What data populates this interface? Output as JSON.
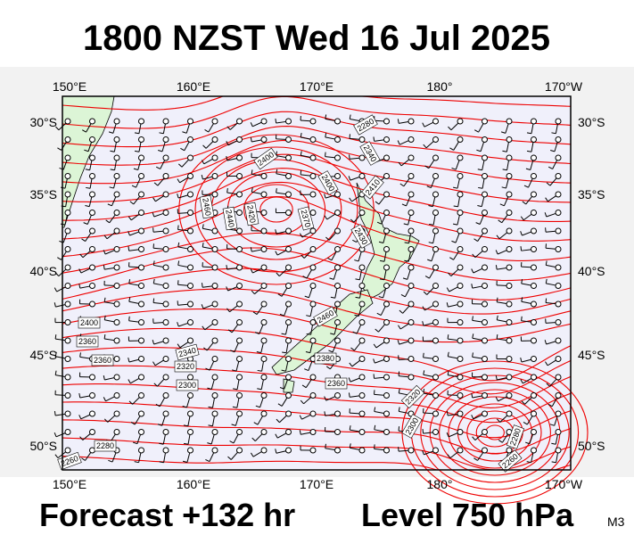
{
  "header": {
    "title": "1800 NZST Wed 16 Jul 2025"
  },
  "map": {
    "lon_labels": [
      "150°E",
      "160°E",
      "170°E",
      "180°",
      "170°W"
    ],
    "lat_labels": [
      "30°S",
      "35°S",
      "40°S",
      "45°S",
      "50°S"
    ],
    "contour_labels": [
      "2280",
      "2340",
      "2400",
      "2400",
      "2410",
      "2460",
      "2440",
      "2420",
      "2370",
      "2430",
      "2400",
      "2360",
      "2360",
      "2340",
      "2320",
      "2300",
      "2460",
      "2380",
      "2360",
      "2320",
      "2300",
      "2280",
      "2260",
      "2280",
      "2260"
    ]
  },
  "footer": {
    "forecast": "Forecast +132 hr",
    "level": "Level 750 hPa",
    "code": "M3"
  }
}
